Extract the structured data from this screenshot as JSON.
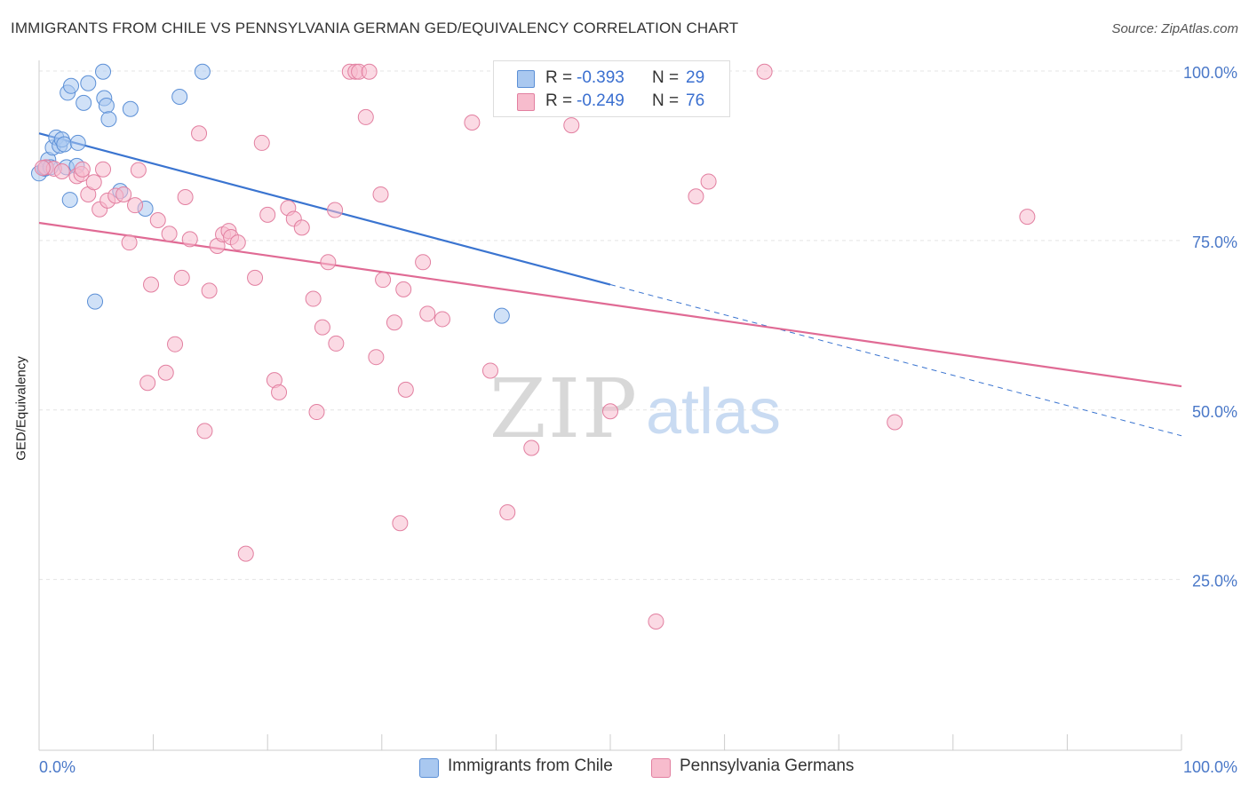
{
  "title": "IMMIGRANTS FROM CHILE VS PENNSYLVANIA GERMAN GED/EQUIVALENCY CORRELATION CHART",
  "source": "Source: ZipAtlas.com",
  "watermark": {
    "zip": "ZIP",
    "atlas": "atlas"
  },
  "legend": {
    "r_label": "R =",
    "n_label": "N =",
    "rows": [
      {
        "r": "-0.393",
        "n": "29",
        "color": "#a9c8f0",
        "border": "#5b8fd6"
      },
      {
        "r": "-0.249",
        "n": "76",
        "color": "#f7bccd",
        "border": "#e27fa0"
      }
    ]
  },
  "bottom_legend": [
    "Immigrants from Chile",
    "Pennsylvania Germans"
  ],
  "chart_data": {
    "type": "scatter",
    "title": "IMMIGRANTS FROM CHILE VS PENNSYLVANIA GERMAN GED/EQUIVALENCY CORRELATION CHART",
    "xlabel": "",
    "ylabel": "GED/Equivalency",
    "xlim": [
      0,
      100
    ],
    "ylim": [
      0,
      105
    ],
    "x_tick_labels": [
      "0.0%",
      "100.0%"
    ],
    "y_ticks": [
      25,
      50,
      75,
      100
    ],
    "y_tick_labels": [
      "25.0%",
      "50.0%",
      "75.0%",
      "100.0%"
    ],
    "grid": true,
    "legend_position": "top-center",
    "series": [
      {
        "name": "Immigrants from Chile",
        "color": "#5b8fd6",
        "fill": "#a9c8f0",
        "trend": {
          "x0": 0,
          "y0": 90.8,
          "x1": 50,
          "y1": 68.5,
          "dashed_to_x": 100,
          "dashed_to_y": 46.2,
          "color": "#3a74d0"
        },
        "points": [
          [
            0,
            84.9
          ],
          [
            0.5,
            85.6
          ],
          [
            0.8,
            86.9
          ],
          [
            1.2,
            88.7
          ],
          [
            1.5,
            90.2
          ],
          [
            1.8,
            89.0
          ],
          [
            2.0,
            89.9
          ],
          [
            2.2,
            89.2
          ],
          [
            2.4,
            85.8
          ],
          [
            2.7,
            81.0
          ],
          [
            2.5,
            96.8
          ],
          [
            2.8,
            97.8
          ],
          [
            3.3,
            86.0
          ],
          [
            3.4,
            89.4
          ],
          [
            3.9,
            95.3
          ],
          [
            4.3,
            98.2
          ],
          [
            5.7,
            96.0
          ],
          [
            5.6,
            99.9
          ],
          [
            5.9,
            94.9
          ],
          [
            6.1,
            92.9
          ],
          [
            4.9,
            66.0
          ],
          [
            7.1,
            82.3
          ],
          [
            8.0,
            94.4
          ],
          [
            9.3,
            79.7
          ],
          [
            12.3,
            96.2
          ],
          [
            14.3,
            99.9
          ],
          [
            0.6,
            85.7
          ],
          [
            40.5,
            63.9
          ],
          [
            1.0,
            85.8
          ]
        ]
      },
      {
        "name": "Pennsylvania Germans",
        "color": "#e27fa0",
        "fill": "#f7bccd",
        "trend": {
          "x0": 0,
          "y0": 77.6,
          "x1": 100,
          "y1": 53.5,
          "color": "#e06a94"
        },
        "points": [
          [
            0.6,
            85.8
          ],
          [
            1.3,
            85.6
          ],
          [
            2.0,
            85.2
          ],
          [
            3.3,
            84.5
          ],
          [
            3.7,
            84.8
          ],
          [
            3.8,
            85.5
          ],
          [
            4.3,
            81.8
          ],
          [
            4.8,
            83.6
          ],
          [
            5.3,
            79.6
          ],
          [
            5.6,
            85.5
          ],
          [
            6.0,
            80.9
          ],
          [
            6.7,
            81.6
          ],
          [
            7.4,
            81.8
          ],
          [
            7.9,
            74.7
          ],
          [
            8.4,
            80.2
          ],
          [
            8.7,
            85.4
          ],
          [
            9.5,
            54.0
          ],
          [
            9.8,
            68.5
          ],
          [
            10.4,
            78.0
          ],
          [
            11.1,
            55.5
          ],
          [
            11.4,
            76.0
          ],
          [
            11.9,
            59.7
          ],
          [
            12.5,
            69.5
          ],
          [
            12.8,
            81.4
          ],
          [
            13.2,
            75.2
          ],
          [
            14.0,
            90.8
          ],
          [
            14.5,
            46.9
          ],
          [
            14.9,
            67.6
          ],
          [
            15.6,
            74.2
          ],
          [
            16.1,
            75.9
          ],
          [
            16.6,
            76.4
          ],
          [
            16.8,
            75.5
          ],
          [
            17.4,
            74.7
          ],
          [
            18.1,
            28.8
          ],
          [
            18.9,
            69.5
          ],
          [
            19.5,
            89.4
          ],
          [
            20.0,
            78.8
          ],
          [
            20.6,
            54.4
          ],
          [
            21.0,
            52.6
          ],
          [
            21.8,
            79.8
          ],
          [
            22.3,
            78.2
          ],
          [
            23.0,
            76.9
          ],
          [
            24.0,
            66.4
          ],
          [
            24.3,
            49.7
          ],
          [
            24.8,
            62.2
          ],
          [
            25.3,
            71.8
          ],
          [
            25.9,
            79.5
          ],
          [
            26.0,
            59.8
          ],
          [
            27.2,
            99.9
          ],
          [
            27.7,
            99.9
          ],
          [
            28.0,
            99.9
          ],
          [
            28.6,
            93.2
          ],
          [
            28.9,
            99.9
          ],
          [
            29.5,
            57.8
          ],
          [
            29.9,
            81.8
          ],
          [
            30.1,
            69.2
          ],
          [
            31.1,
            62.9
          ],
          [
            31.6,
            33.3
          ],
          [
            31.9,
            67.8
          ],
          [
            32.1,
            53.0
          ],
          [
            33.6,
            71.8
          ],
          [
            34.0,
            64.2
          ],
          [
            35.3,
            63.4
          ],
          [
            37.9,
            92.4
          ],
          [
            39.5,
            55.8
          ],
          [
            41.0,
            34.9
          ],
          [
            43.1,
            44.4
          ],
          [
            46.6,
            92.0
          ],
          [
            50.0,
            49.8
          ],
          [
            54.0,
            18.8
          ],
          [
            57.5,
            81.5
          ],
          [
            58.6,
            83.7
          ],
          [
            63.5,
            99.9
          ],
          [
            74.9,
            48.2
          ],
          [
            86.5,
            78.5
          ],
          [
            0.3,
            85.7
          ]
        ]
      }
    ]
  }
}
